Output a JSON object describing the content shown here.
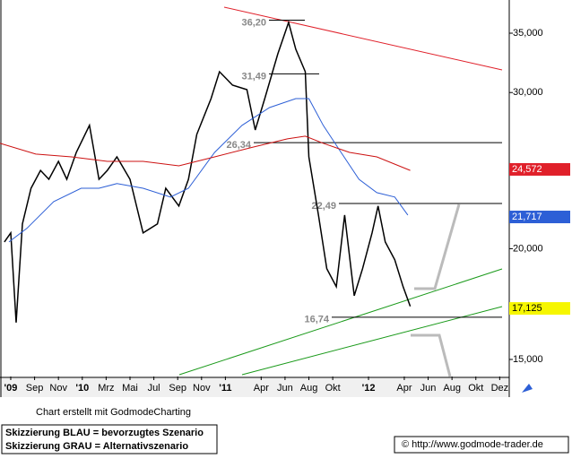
{
  "chart_data": {
    "type": "line",
    "log_scale": true,
    "xlim": [
      -0.9,
      41.8
    ],
    "xticks": [
      {
        "value": 0,
        "label": "'09"
      },
      {
        "value": 2,
        "label": "Sep"
      },
      {
        "value": 4,
        "label": "Nov"
      },
      {
        "value": 6,
        "label": "'10"
      },
      {
        "value": 8,
        "label": "Mrz"
      },
      {
        "value": 10,
        "label": "Mai"
      },
      {
        "value": 12,
        "label": "Jul"
      },
      {
        "value": 14,
        "label": "Sep"
      },
      {
        "value": 16,
        "label": "Nov"
      },
      {
        "value": 18,
        "label": "'11"
      },
      {
        "value": 21,
        "label": "Apr"
      },
      {
        "value": 23,
        "label": "Jun"
      },
      {
        "value": 25,
        "label": "Aug"
      },
      {
        "value": 27,
        "label": "Okt"
      },
      {
        "value": 30,
        "label": "'12"
      },
      {
        "value": 33,
        "label": "Apr"
      },
      {
        "value": 35,
        "label": "Jun"
      },
      {
        "value": 37,
        "label": "Aug"
      },
      {
        "value": 39,
        "label": "Okt"
      },
      {
        "value": 41,
        "label": "Dez"
      }
    ],
    "ylim": [
      14350,
      38150
    ],
    "yticks": [
      {
        "value": 15000,
        "label": "15,000"
      },
      {
        "value": 20000,
        "label": "20,000"
      },
      {
        "value": 30000,
        "label": "30,000"
      },
      {
        "value": 35000,
        "label": "35,000"
      }
    ],
    "series": [
      {
        "color": "#000000",
        "x": [
          -0.53,
          0,
          0.45,
          0.98,
          1.7,
          2.5,
          3.2,
          4.0,
          4.7,
          5.5,
          6.6,
          7.4,
          8.1,
          8.9,
          10.0,
          11.1,
          12.3,
          13.0,
          14.1,
          14.9,
          15.6,
          16.8,
          17.5,
          18.6,
          19.8,
          20.5,
          21.3,
          22.4,
          23.3,
          23.9,
          24.7,
          25.0,
          25.8,
          26.5,
          27.3,
          28.0,
          28.8,
          29.5,
          30.3,
          30.8,
          31.4,
          32.2,
          32.9,
          33.5
        ],
        "values": [
          20350,
          20835,
          16510,
          21325,
          23400,
          24510,
          23950,
          25090,
          23950,
          25680,
          27550,
          23950,
          24510,
          25385,
          23950,
          20835,
          21325,
          23400,
          22345,
          23950,
          26910,
          29530,
          31670,
          30580,
          30230,
          27220,
          29530,
          33180,
          35990,
          33570,
          31670,
          25385,
          21825,
          18990,
          18120,
          21825,
          17700,
          18990,
          20835,
          22345,
          20350,
          19430,
          18120,
          17215
        ]
      },
      {
        "color": "#2d5fd6",
        "x": [
          -0.15,
          1.35,
          3.6,
          5.9,
          7.4,
          8.9,
          11.1,
          13.4,
          14.9,
          17.1,
          19.4,
          21.7,
          23.9,
          25.0,
          26.2,
          27.7,
          29.2,
          30.7,
          32.2,
          33.3
        ],
        "values": [
          20350,
          21080,
          22600,
          23400,
          23400,
          23680,
          23400,
          22870,
          23400,
          25680,
          27550,
          28850,
          29530,
          29530,
          27550,
          25680,
          23950,
          23130,
          22870,
          21825
        ]
      },
      {
        "color": "#cc1111",
        "x": [
          -0.9,
          2.1,
          5.1,
          8.1,
          11.1,
          14.1,
          17.1,
          20.2,
          23.2,
          24.7,
          26.2,
          28.4,
          30.7,
          33.5
        ],
        "values": [
          26300,
          25570,
          25385,
          25090,
          25090,
          24800,
          25385,
          26010,
          26600,
          26785,
          26300,
          25680,
          25385,
          24510
        ]
      }
    ],
    "annotations": [
      {
        "label": "36,20",
        "value": 36200
      },
      {
        "label": "31,49",
        "value": 31490
      },
      {
        "label": "26,34",
        "value": 26340
      },
      {
        "label": "22,49",
        "value": 22490
      },
      {
        "label": "16,74",
        "value": 16740
      }
    ],
    "last_values": [
      {
        "label": "24,572",
        "value": 24572,
        "color": "#e0202a"
      },
      {
        "label": "21,717",
        "value": 21717,
        "color": "#2d5fd6"
      },
      {
        "label": "17,125",
        "value": 17125,
        "color": "#f6f600"
      }
    ],
    "credit": "Chart erstellt mit GodmodeCharting",
    "notes": [
      "Skizzierung BLAU = bevorzugtes Szenario",
      "Skizzierung GRAU = Alternativszenario"
    ],
    "source": "© http://www.godmode-trader.de"
  }
}
